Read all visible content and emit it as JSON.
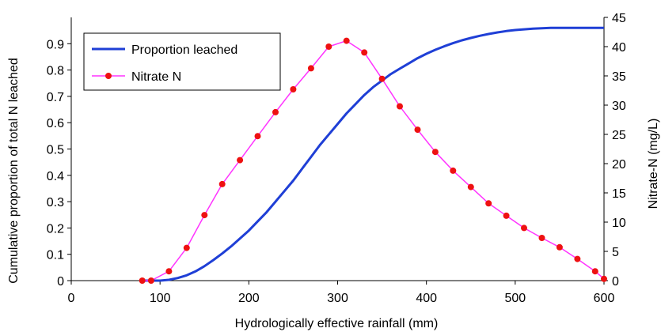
{
  "chart_data": {
    "type": "line",
    "xlabel": "Hydrologically effective rainfall (mm)",
    "ylabel_left": "Cumulative proportion of total N leached",
    "ylabel_right": "Nitrate-N (mg/L)",
    "xlim": [
      0,
      600
    ],
    "ylim_left": [
      0,
      1.0
    ],
    "ylim_right": [
      0,
      45
    ],
    "x_ticks": [
      "0",
      "100",
      "200",
      "300",
      "400",
      "500",
      "600"
    ],
    "y_left_ticks": [
      "0",
      "0.1",
      "0.2",
      "0.3",
      "0.4",
      "0.5",
      "0.6",
      "0.7",
      "0.8",
      "0.9"
    ],
    "y_right_ticks": [
      "0",
      "5",
      "10",
      "15",
      "20",
      "25",
      "30",
      "35",
      "40",
      "45"
    ],
    "grid": false,
    "legend": {
      "placement": "top-left"
    },
    "series": [
      {
        "name": "Proportion leached",
        "axis": "left",
        "color": "#1f3fd6",
        "marker": "none",
        "x": [
          80,
          100,
          110,
          120,
          130,
          140,
          150,
          160,
          170,
          180,
          190,
          200,
          210,
          220,
          230,
          240,
          250,
          260,
          270,
          280,
          290,
          300,
          310,
          320,
          330,
          340,
          350,
          360,
          370,
          380,
          390,
          400,
          410,
          420,
          430,
          440,
          450,
          460,
          470,
          480,
          490,
          500,
          520,
          540,
          560,
          580,
          600
        ],
        "y": [
          0,
          0,
          0.003,
          0.01,
          0.02,
          0.035,
          0.055,
          0.078,
          0.103,
          0.13,
          0.16,
          0.19,
          0.225,
          0.26,
          0.3,
          0.34,
          0.38,
          0.425,
          0.47,
          0.515,
          0.555,
          0.595,
          0.635,
          0.67,
          0.705,
          0.735,
          0.76,
          0.785,
          0.805,
          0.825,
          0.845,
          0.862,
          0.877,
          0.89,
          0.902,
          0.913,
          0.922,
          0.93,
          0.937,
          0.943,
          0.948,
          0.952,
          0.957,
          0.96,
          0.96,
          0.96,
          0.96
        ]
      },
      {
        "name": "Nitrate N",
        "axis": "right",
        "color": "#ff33ff",
        "marker": "circle",
        "marker_color": "#ee1111",
        "x": [
          80,
          90,
          110,
          130,
          150,
          170,
          190,
          210,
          230,
          250,
          270,
          290,
          310,
          330,
          350,
          370,
          390,
          410,
          430,
          450,
          470,
          490,
          510,
          530,
          550,
          570,
          590,
          600
        ],
        "y": [
          0,
          0,
          1.6,
          5.6,
          11.2,
          16.5,
          20.6,
          24.7,
          28.8,
          32.7,
          36.3,
          40.0,
          41.0,
          39.0,
          34.5,
          29.8,
          25.8,
          22.0,
          18.8,
          16.0,
          13.2,
          11.1,
          9.0,
          7.3,
          5.7,
          3.7,
          1.6,
          0.3
        ]
      }
    ]
  }
}
